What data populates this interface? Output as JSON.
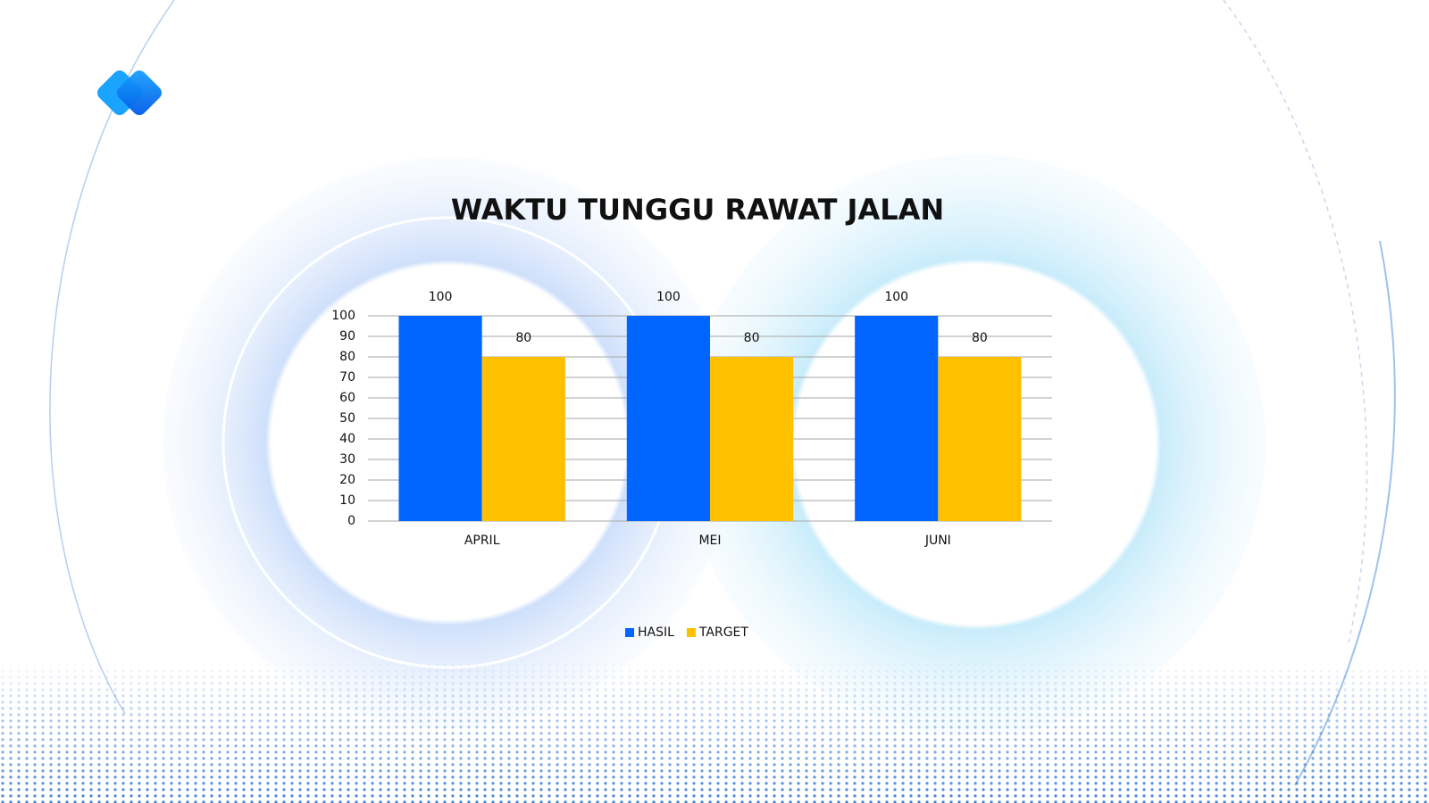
{
  "chart_data": {
    "type": "bar",
    "title": "WAKTU TUNGGU RAWAT JALAN",
    "categories": [
      "APRIL",
      "MEI",
      "JUNI"
    ],
    "series": [
      {
        "name": "HASIL",
        "color": "#0066ff",
        "values": [
          100,
          100,
          100
        ]
      },
      {
        "name": "TARGET",
        "color": "#ffc000",
        "values": [
          80,
          80,
          80
        ]
      }
    ],
    "ylim": [
      0,
      100
    ],
    "yticks": [
      0,
      10,
      20,
      30,
      40,
      50,
      60,
      70,
      80,
      90,
      100
    ],
    "grid": true,
    "legend": "bottom"
  }
}
